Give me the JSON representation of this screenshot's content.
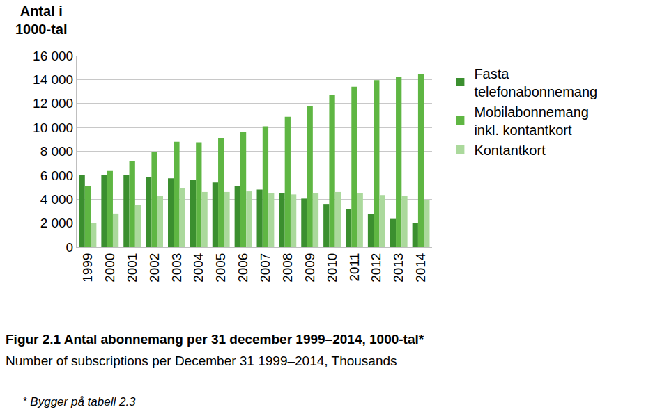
{
  "chart_data": {
    "type": "bar",
    "title": "Figur 2.1 Antal abonnemang per 31 december 1999–2014, 1000-tal*",
    "subtitle": "Number of subscriptions per December 31 1999–2014, Thousands",
    "y_label": "Antal i 1000-tal",
    "annotations": [
      "* Bygger på tabell 2.3"
    ],
    "categories": [
      "1999",
      "2000",
      "2001",
      "2002",
      "2003",
      "2004",
      "2005",
      "2006",
      "2007",
      "2008",
      "2009",
      "2010",
      "2011",
      "2012",
      "2013",
      "2014"
    ],
    "series": [
      {
        "name": "Fasta telefonabonnemang",
        "color": "#3b8f2f",
        "values": [
          6050,
          6000,
          6000,
          5850,
          5750,
          5600,
          5400,
          5100,
          4800,
          4500,
          4050,
          3600,
          3200,
          2750,
          2350,
          2000
        ]
      },
      {
        "name": "Mobilabonnemang inkl. kontantkort",
        "color": "#5fb643",
        "values": [
          5100,
          6350,
          7150,
          7950,
          8800,
          8750,
          9100,
          9600,
          10100,
          10900,
          11750,
          12700,
          13400,
          13950,
          14200,
          14450
        ]
      },
      {
        "name": "Kontantkort",
        "color": "#abd99c",
        "values": [
          2000,
          2800,
          3500,
          4300,
          4950,
          4600,
          4600,
          4650,
          4500,
          4400,
          4500,
          4600,
          4500,
          4350,
          4250,
          3900
        ]
      }
    ],
    "ylim": [
      0,
      16000
    ],
    "yticks": [
      0,
      {
        "value": 2000,
        "label": "2 000"
      },
      {
        "value": 4000,
        "label": "4 000"
      },
      {
        "value": 6000,
        "label": "6 000"
      },
      {
        "value": 8000,
        "label": "8 000"
      },
      {
        "value": 10000,
        "label": "10 000"
      },
      {
        "value": 12000,
        "label": "12 000"
      },
      {
        "value": 14000,
        "label": "14 000"
      },
      {
        "value": 16000,
        "label": "16 000"
      }
    ],
    "grid": true,
    "legend": "right"
  }
}
